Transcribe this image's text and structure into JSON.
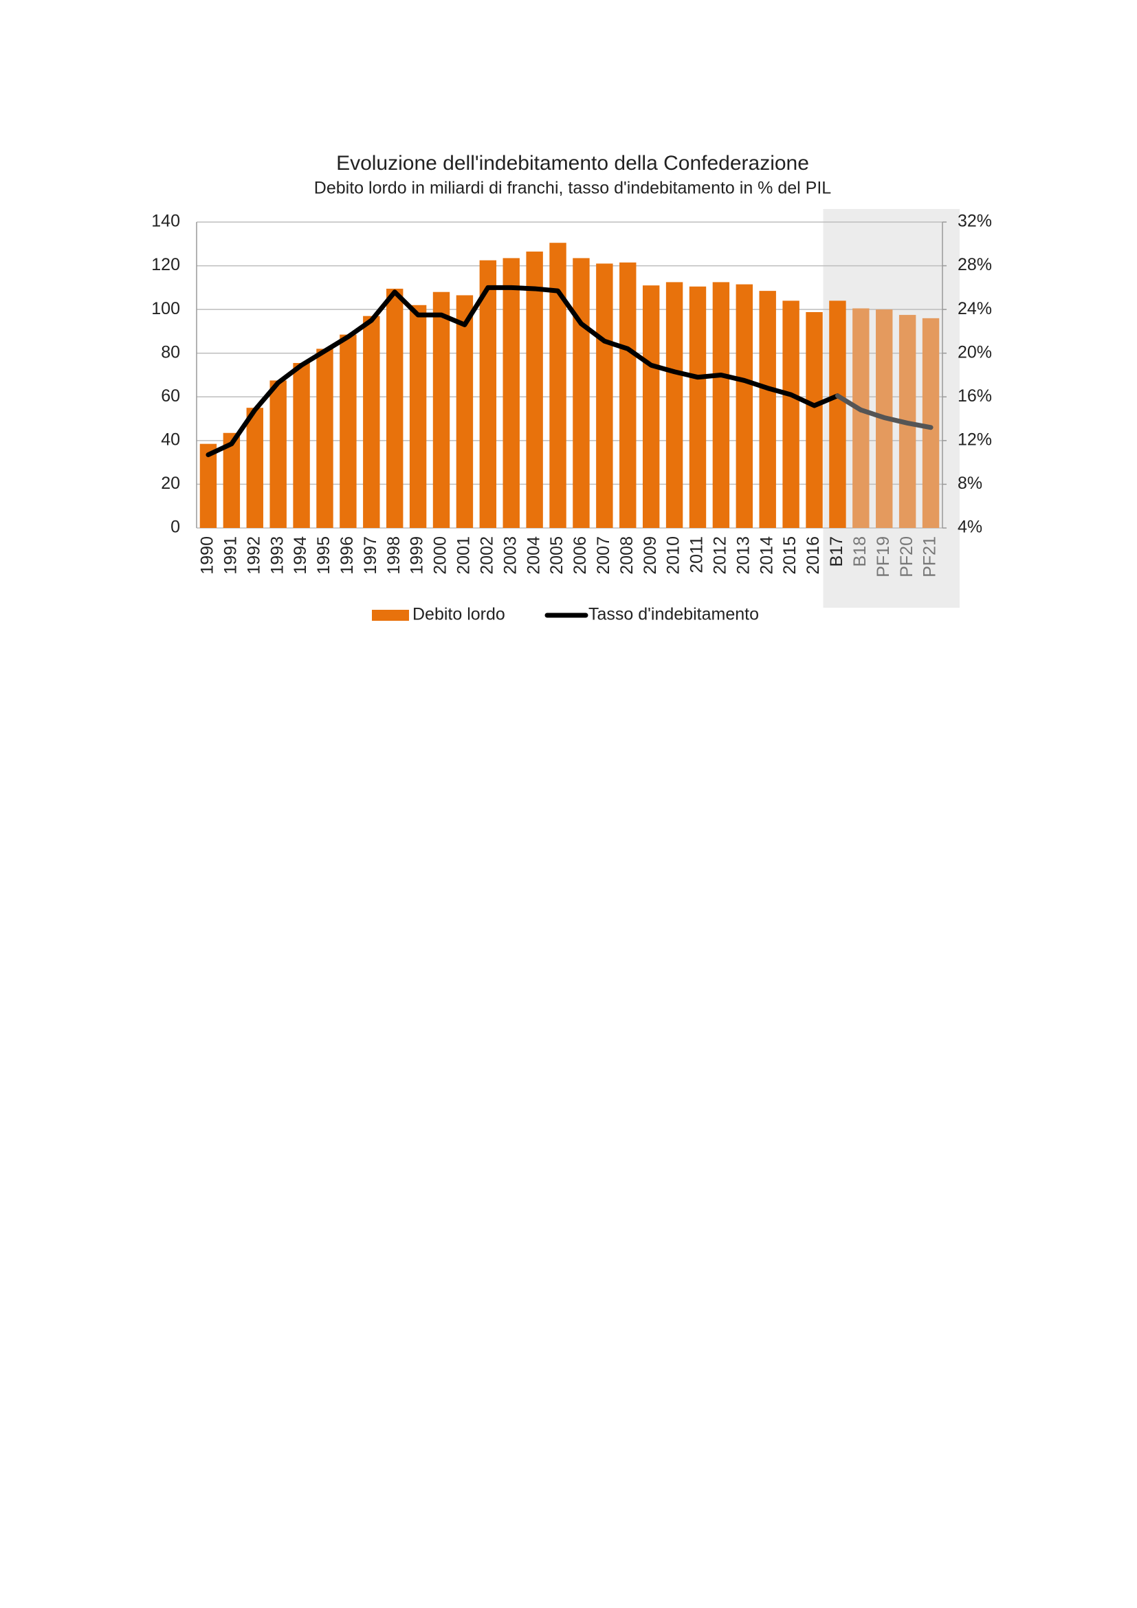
{
  "chart_data": {
    "type": "bar_line",
    "title": "Evoluzione dell'indebitamento della Confederazione",
    "subtitle": "Debito lordo in miliardi di franchi, tasso d'indebitamento in % del PIL",
    "categories": [
      "1990",
      "1991",
      "1992",
      "1993",
      "1994",
      "1995",
      "1996",
      "1997",
      "1998",
      "1999",
      "2000",
      "2001",
      "2002",
      "2003",
      "2004",
      "2005",
      "2006",
      "2007",
      "2008",
      "2009",
      "2010",
      "2011",
      "2012",
      "2013",
      "2014",
      "2015",
      "2016",
      "B17",
      "B18",
      "PF19",
      "PF20",
      "PF21"
    ],
    "series": [
      {
        "name": "Debito lordo",
        "type": "bar",
        "color": "#e8720c",
        "forecast_color": "#e49a5e",
        "values": [
          38.5,
          43.5,
          55,
          67.5,
          75.5,
          82,
          88.5,
          97,
          109.5,
          102,
          108,
          106.5,
          122.5,
          123.5,
          126.5,
          130.5,
          123.5,
          121,
          121.5,
          111,
          112.5,
          110.5,
          112.5,
          111.5,
          108.5,
          104,
          98.8,
          104,
          100.5,
          100,
          97.5,
          96
        ]
      },
      {
        "name": "Tasso d'indebitamento",
        "type": "line",
        "axis": "y2",
        "color": "#000000",
        "forecast_color": "#555555",
        "values": [
          10.7,
          11.7,
          14.8,
          17.3,
          18.9,
          20.2,
          21.5,
          23.0,
          25.6,
          23.5,
          23.5,
          22.6,
          26.0,
          26.0,
          25.9,
          25.7,
          22.7,
          21.1,
          20.4,
          18.9,
          18.3,
          17.8,
          18.0,
          17.5,
          16.8,
          16.2,
          15.2,
          16.1,
          14.8,
          14.1,
          13.6,
          13.2
        ]
      }
    ],
    "forecast_from": "B18",
    "shaded_from": "B17",
    "shade_color": "#ececec",
    "ylim": [
      0,
      140
    ],
    "yticks": [
      0,
      20,
      40,
      60,
      80,
      100,
      120,
      140
    ],
    "y2lim": [
      4,
      32
    ],
    "y2ticks": [
      {
        "value": 4,
        "label": "4%"
      },
      {
        "value": 8,
        "label": "8%"
      },
      {
        "value": 12,
        "label": "12%"
      },
      {
        "value": 16,
        "label": "16%"
      },
      {
        "value": 20,
        "label": "20%"
      },
      {
        "value": 24,
        "label": "24%"
      },
      {
        "value": 28,
        "label": "28%"
      },
      {
        "value": 32,
        "label": "32%"
      }
    ],
    "grid": true,
    "legend": "bottom"
  }
}
